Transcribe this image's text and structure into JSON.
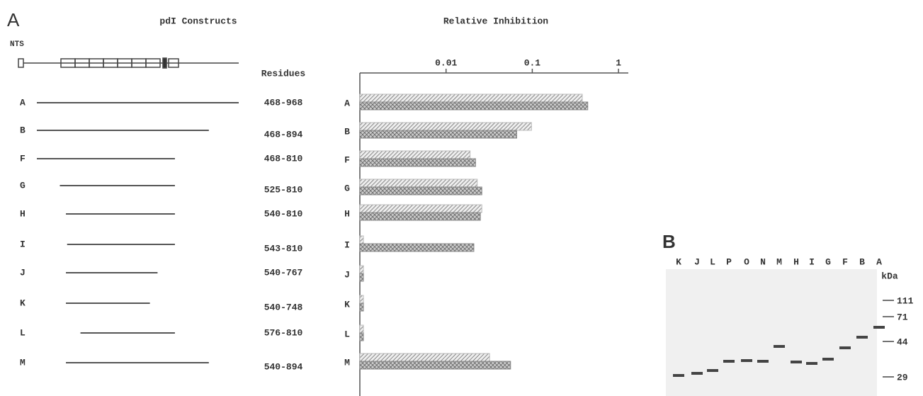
{
  "constructs_panel": {
    "label": "A",
    "title": "pdI Constructs",
    "nts_label": "NTS",
    "residues_header": "Residues",
    "constructs": [
      {
        "name": "A",
        "residues": {
          "start": 468,
          "end": 968,
          "label": "468-968"
        }
      },
      {
        "name": "B",
        "residues": {
          "start": 468,
          "end": 894,
          "label": "468-894"
        }
      },
      {
        "name": "F",
        "residues": {
          "start": 468,
          "end": 810,
          "label": "468-810"
        }
      },
      {
        "name": "G",
        "residues": {
          "start": 525,
          "end": 810,
          "label": "525-810"
        }
      },
      {
        "name": "H",
        "residues": {
          "start": 540,
          "end": 810,
          "label": "540-810"
        }
      },
      {
        "name": "I",
        "residues": {
          "start": 543,
          "end": 810,
          "label": "543-810"
        }
      },
      {
        "name": "J",
        "residues": {
          "start": 540,
          "end": 767,
          "label": "540-767"
        }
      },
      {
        "name": "K",
        "residues": {
          "start": 540,
          "end": 748,
          "label": "540-748"
        }
      },
      {
        "name": "L",
        "residues": {
          "start": 576,
          "end": 810,
          "label": "576-810"
        }
      },
      {
        "name": "M",
        "residues": {
          "start": 540,
          "end": 894,
          "label": "540-894"
        }
      }
    ]
  },
  "chart_data": {
    "type": "bar",
    "orientation": "horizontal",
    "title": "Relative Inhibition",
    "categories": [
      "A",
      "B",
      "F",
      "G",
      "H",
      "I",
      "J",
      "K",
      "L",
      "M"
    ],
    "series": [
      {
        "color": "#bbbbbb",
        "values": [
          0.38,
          0.098,
          0.019,
          0.023,
          0.026,
          0.0011,
          0.0011,
          0.0011,
          0.0011,
          0.032
        ]
      },
      {
        "color": "#888888",
        "values": [
          0.44,
          0.066,
          0.022,
          0.026,
          0.025,
          0.021,
          0.0011,
          0.0011,
          0.0011,
          0.056
        ]
      }
    ],
    "xscale": "log",
    "xlim": [
      0.001,
      1.3
    ],
    "xticks": [
      0.01,
      0.1,
      1
    ]
  },
  "gel_panel": {
    "label": "B",
    "lanes": [
      "K",
      "J",
      "L",
      "P",
      "O",
      "N",
      "M",
      "H",
      "I",
      "G",
      "F",
      "B",
      "A"
    ],
    "unit": "kDa",
    "markers": [
      111,
      71,
      44,
      29
    ]
  }
}
